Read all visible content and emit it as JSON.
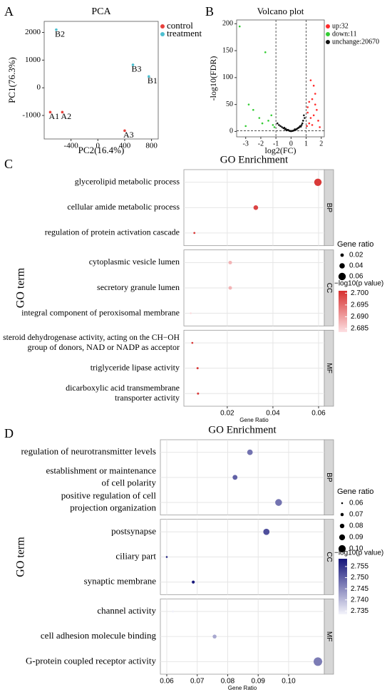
{
  "chart_data": [
    {
      "type": "scatter",
      "panel": "A",
      "title": "PCA",
      "xlabel": "PC2(16.4%)",
      "ylabel": "PC1(76.3%)",
      "xlim": [
        -800,
        900
      ],
      "ylim": [
        -1850,
        2400
      ],
      "xticks": [
        -400,
        0,
        400,
        800
      ],
      "yticks": [
        -1000,
        0,
        1000,
        2000
      ],
      "legend": "right",
      "series": [
        {
          "name": "control",
          "color": "#e8413c",
          "x": [
            -710,
            -530,
            400
          ],
          "values": [
            -880,
            -880,
            -1550
          ],
          "point_labels": [
            "A1",
            "A2",
            "A3"
          ]
        },
        {
          "name": "treatment",
          "color": "#4dbfd0",
          "x": [
            760,
            -620,
            523
          ],
          "values": [
            410,
            2100,
            830
          ],
          "point_labels": [
            "B1",
            "B2",
            "B3"
          ]
        }
      ]
    },
    {
      "type": "scatter",
      "panel": "B",
      "title": "Volcano plot",
      "xlabel": "log2(FC)",
      "ylabel": "-log10(FDR)",
      "xlim": [
        -3.6,
        2.2
      ],
      "ylim": [
        -10,
        207
      ],
      "xticks": [
        -3,
        -2,
        -1,
        0,
        1,
        2
      ],
      "yticks": [
        0,
        50,
        100,
        150,
        200
      ],
      "legend": "right",
      "threshold_lines": {
        "x": [
          -1,
          1
        ],
        "y": [
          1.3
        ]
      },
      "series": [
        {
          "name": "up:32",
          "color": "#ff2a2a",
          "x": [
            1.3,
            1.5,
            1.6,
            1.4,
            1.2,
            1.7,
            1.1,
            1.3,
            1.5,
            1.8,
            1.2,
            1.05,
            1.4,
            1.6,
            1.9,
            1.1
          ],
          "values": [
            95,
            85,
            70,
            60,
            55,
            40,
            35,
            25,
            30,
            20,
            15,
            10,
            12,
            50,
            8,
            45
          ]
        },
        {
          "name": "down:11",
          "color": "#33cc33",
          "x": [
            -3.4,
            -1.7,
            -2.8,
            -2.5,
            -1.3,
            -1.5,
            -2.1,
            -1.2,
            -3.0,
            -1.1,
            -1.9
          ],
          "values": [
            195,
            147,
            50,
            40,
            30,
            20,
            25,
            12,
            10,
            8,
            15
          ]
        },
        {
          "name": "unchange:20670",
          "color": "#111111",
          "x": [
            -0.9,
            -0.7,
            -0.5,
            -0.4,
            -0.3,
            -0.2,
            -0.1,
            0,
            0.1,
            0.2,
            0.3,
            0.4,
            0.5,
            0.6,
            0.7,
            0.8,
            0.9,
            -0.6,
            -0.35,
            -0.15,
            0.05,
            0.25,
            0.45,
            0.65,
            -0.8,
            0.85,
            -0.25,
            0.15,
            0.35,
            -0.45,
            0.55,
            -0.05,
            0.75
          ],
          "values": [
            15,
            10,
            6,
            4,
            2,
            3,
            1,
            0.5,
            1,
            2,
            3,
            5,
            7,
            10,
            12,
            20,
            25,
            8,
            5,
            2,
            1,
            4,
            6,
            9,
            12,
            30,
            3,
            1.5,
            4,
            7,
            8,
            1,
            15
          ]
        }
      ]
    },
    {
      "type": "dotplot",
      "panel": "C",
      "title": "GO Enrichment",
      "xlabel": "Gene Ratio",
      "ylabel": "GO term",
      "xlim": [
        0.001,
        0.0625
      ],
      "xticks": [
        0.02,
        0.04,
        0.06
      ],
      "size_title": "Gene ratio",
      "size_ticks": [
        0.02,
        0.04,
        0.06
      ],
      "color_title": "−log10(p value)",
      "color_lim": [
        2.6835,
        2.701
      ],
      "color_ticks": [
        {
          "value": 2.7,
          "label": "2.700"
        },
        2.695,
        {
          "value": 2.69,
          "label": "2.690"
        },
        2.685
      ],
      "colors": [
        "#fde0e3",
        "#d7302f"
      ],
      "facets": [
        {
          "name": "BP",
          "terms": [
            [
              "glycerolipid metabolic process"
            ],
            [
              "cellular amide metabolic process"
            ],
            [
              "regulation of protein activation cascade"
            ]
          ],
          "values": [
            0.0597,
            0.0325,
            0.0056
          ],
          "neglog10p": [
            2.7,
            2.699,
            2.7
          ]
        },
        {
          "name": "CC",
          "terms": [
            [
              "cytoplasmic vesicle lumen"
            ],
            [
              "secretory granule lumen"
            ],
            [
              "integral component of peroxisomal membrane"
            ]
          ],
          "values": [
            0.0213,
            0.0213,
            0.004
          ],
          "neglog10p": [
            2.688,
            2.688,
            2.684
          ]
        },
        {
          "name": "MF",
          "terms": [
            [
              "steroid dehydrogenase activity, acting on the CH−OH",
              "group of donors, NAD or NADP as acceptor"
            ],
            [
              "triglyceride lipase activity"
            ],
            [
              "dicarboxylic acid transmembrane",
              "transporter activity"
            ]
          ],
          "values": [
            0.0047,
            0.007,
            0.0072
          ],
          "neglog10p": [
            2.7,
            2.7,
            2.7
          ]
        }
      ]
    },
    {
      "type": "dotplot",
      "panel": "D",
      "title": "GO Enrichment",
      "xlabel": "Gene Ratio",
      "ylabel": "GO term",
      "xlim": [
        0.0579,
        0.1117
      ],
      "xticks": [
        0.06,
        0.07,
        0.08,
        0.09,
        {
          "value": 0.1,
          "label": "0.10"
        }
      ],
      "size_title": "Gene ratio",
      "size_ticks": [
        0.06,
        0.07,
        0.08,
        0.09,
        {
          "value": 0.1,
          "label": "0.10"
        }
      ],
      "color_title": "−log10(p value)",
      "color_lim": [
        2.7335,
        2.7585
      ],
      "color_ticks": [
        2.755,
        {
          "value": 2.75,
          "label": "2.750"
        },
        2.745,
        {
          "value": 2.74,
          "label": "2.740"
        },
        2.735
      ],
      "colors": [
        "#f4f4fb",
        "#15157a"
      ],
      "facets": [
        {
          "name": "BP",
          "terms": [
            [
              "regulation of neurotransmitter levels"
            ],
            [
              "establishment or maintenance",
              "of cell polarity"
            ],
            [
              "positive regulation of cell",
              "projection organization"
            ]
          ],
          "values": [
            0.0873,
            0.0824,
            0.0967
          ],
          "neglog10p": [
            2.748,
            2.75,
            2.748
          ]
        },
        {
          "name": "CC",
          "terms": [
            [
              "postsynapse"
            ],
            [
              "ciliary part"
            ],
            [
              "synaptic membrane"
            ]
          ],
          "values": [
            0.0927,
            0.06,
            0.0687
          ],
          "neglog10p": [
            2.752,
            2.757,
            2.758
          ]
        },
        {
          "name": "MF",
          "terms": [
            [
              "channel activity"
            ],
            [
              "cell adhesion molecule binding"
            ],
            [
              "G-protein coupled receptor activity"
            ]
          ],
          "values": [
            0.062,
            0.0757,
            0.1096
          ],
          "neglog10p": [
            2.734,
            2.742,
            2.747
          ]
        }
      ]
    }
  ]
}
